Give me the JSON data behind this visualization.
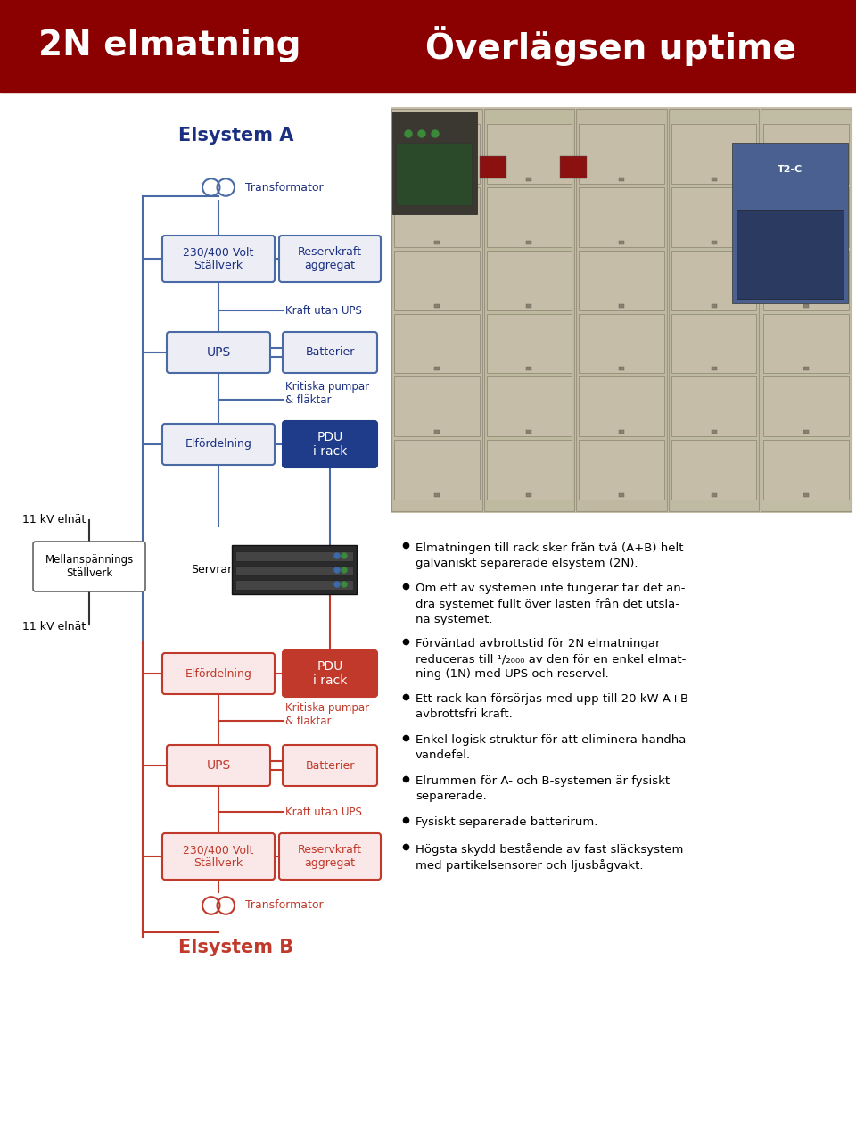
{
  "header_bg": "#8B0000",
  "header_title_left": "2N elmatning",
  "header_title_right": "Överlägsen uptime",
  "bg_color": "#FFFFFF",
  "blue_color": "#1B2F80",
  "blue_edge": "#4A6AA5",
  "blue_box_bg": "#EDEEF5",
  "pdu_blue_bg": "#1F3C8A",
  "red_color": "#C0392B",
  "red_box_bg": "#FAE8E8",
  "pdu_red_bg": "#C0392B",
  "bullet_points": [
    "Elmatningen till rack sker från två (A+B) helt\ngalvaniskt separerade elsystem (2N).",
    "Om ett av systemen inte fungerar tar det an-\ndra systemet fullt över lasten från det utsla-\nna systemet.",
    "Förväntad avbrottstid för 2N elmatningar\nreduceras till ¹/₂₀₀₀ av den för en enkel elmat-\nning (1N) med UPS och reservel.",
    "Ett rack kan försörjas med upp till 20 kW A+B\navbrottsfri kraft.",
    "Enkel logisk struktur för att eliminera handha-\nvandefel.",
    "Elrummen för A- och B-systemen är fysiskt\nseparerade.",
    "Fysiskt separerade batterirum.",
    "Högsta skydd bestående av fast släcksystem\nmed partikelsensorer och ljusbågvakt."
  ]
}
